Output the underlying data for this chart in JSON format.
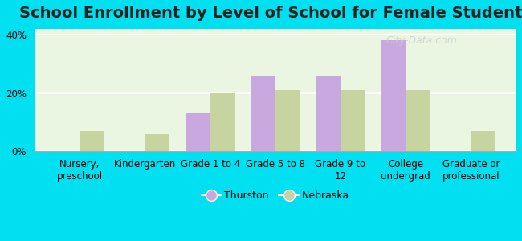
{
  "title": "School Enrollment by Level of School for Female Students",
  "categories": [
    "Nursery,\npreschool",
    "Kindergarten",
    "Grade 1 to 4",
    "Grade 5 to 8",
    "Grade 9 to\n12",
    "College\nundergrad",
    "Graduate or\nprofessional"
  ],
  "thurston": [
    0,
    0,
    13,
    26,
    26,
    38,
    0
  ],
  "nebraska": [
    7,
    6,
    20,
    21,
    21,
    21,
    7
  ],
  "thurston_color": "#c9a8e0",
  "nebraska_color": "#c8d4a0",
  "background_outer": "#00e0f0",
  "plot_bg": "#eaf5e2",
  "ylim": [
    0,
    42
  ],
  "yticks": [
    0,
    20,
    40
  ],
  "ytick_labels": [
    "0%",
    "20%",
    "40%"
  ],
  "bar_width": 0.38,
  "legend_labels": [
    "Thurston",
    "Nebraska"
  ],
  "title_fontsize": 14,
  "tick_fontsize": 8.5
}
